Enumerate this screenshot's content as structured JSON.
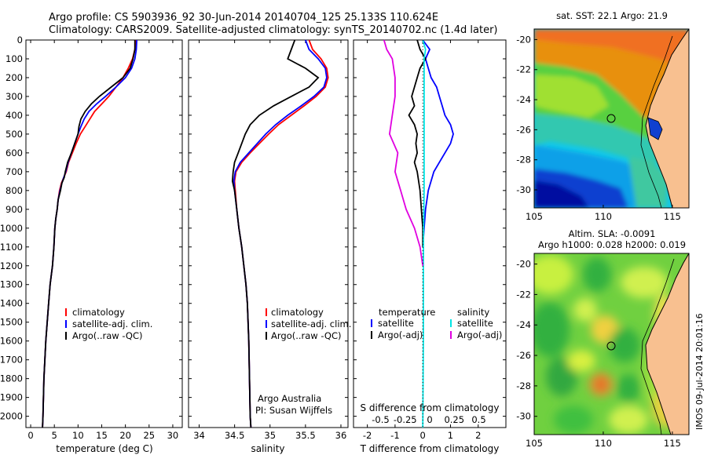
{
  "header": {
    "line1": "Argo profile: CS 5903936_92 30-Jun-2014 20140704_125 25.133S 110.624E",
    "line2": "Climatology: CARS2009. Satellite-adjusted climatology: synTS_20140702.nc (1.4d later)"
  },
  "credits": {
    "line1": "Argo Australia",
    "line2": "PI: Susan Wijffels"
  },
  "stamp": "IMOS 09-Jul-2014 20:01:16",
  "colors": {
    "climatology": "#ff0000",
    "satellite": "#0000ff",
    "argo": "#000000",
    "sal_sat": "#00e5e5",
    "sal_argo": "#e000e0"
  },
  "chart_data": [
    {
      "type": "line",
      "name": "temperature",
      "xlabel": "temperature (deg C)",
      "xticks": [
        0,
        5,
        10,
        15,
        20,
        25,
        30
      ],
      "xlim": [
        -1,
        32
      ],
      "yticks": [
        0,
        100,
        200,
        300,
        400,
        500,
        600,
        700,
        800,
        900,
        1000,
        1100,
        1200,
        1300,
        1400,
        1500,
        1600,
        1700,
        1800,
        1900,
        2000
      ],
      "ylim": [
        2060,
        0
      ],
      "legend": {
        "items": [
          "climatology",
          "satellite-adj. clim.",
          "Argo(..raw -QC)"
        ]
      },
      "series": [
        {
          "name": "climatology",
          "color": "#ff0000",
          "x": [
            22.2,
            22.0,
            21.5,
            20.6,
            19.5,
            18.0,
            16.5,
            15.0,
            13.5,
            12.5,
            11.5,
            10.5,
            9.6,
            8.8,
            8.0,
            7.5,
            7.0,
            6.5,
            6.1,
            5.8,
            5.6,
            5.3,
            5.1,
            4.9,
            4.6,
            4.1,
            3.8,
            3.5,
            3.2,
            3.0,
            2.8,
            2.7,
            2.6,
            2.5
          ],
          "y": [
            0,
            50,
            100,
            150,
            200,
            250,
            300,
            340,
            380,
            420,
            460,
            500,
            550,
            600,
            650,
            700,
            730,
            760,
            800,
            850,
            900,
            950,
            1000,
            1100,
            1200,
            1300,
            1400,
            1500,
            1600,
            1700,
            1800,
            1900,
            2000,
            2060
          ]
        },
        {
          "name": "satellite-adj. clim.",
          "color": "#0000ff",
          "x": [
            22.4,
            22.3,
            22.0,
            21.3,
            20.0,
            18.0,
            15.8,
            13.9,
            12.3,
            11.3,
            10.6,
            10.0,
            9.3,
            8.6,
            7.9,
            7.4,
            7.0,
            6.6,
            6.2,
            5.8,
            5.6,
            5.3,
            5.1,
            4.9,
            4.6,
            4.1,
            3.8,
            3.5,
            3.2,
            3.0,
            2.8,
            2.7,
            2.6,
            2.5
          ],
          "y": [
            0,
            50,
            100,
            150,
            200,
            250,
            300,
            340,
            380,
            420,
            460,
            500,
            550,
            600,
            650,
            700,
            730,
            760,
            800,
            850,
            900,
            950,
            1000,
            1100,
            1200,
            1300,
            1400,
            1500,
            1600,
            1700,
            1800,
            1900,
            2000,
            2060
          ]
        },
        {
          "name": "Argo(..raw -QC)",
          "color": "#000000",
          "x": [
            22.0,
            22.0,
            21.6,
            21.0,
            19.5,
            17.0,
            14.5,
            12.8,
            11.5,
            10.6,
            10.2,
            10.0,
            9.3,
            8.6,
            7.8,
            7.3,
            7.1,
            6.6,
            6.3,
            5.8,
            5.6,
            5.3,
            5.1,
            4.9,
            4.6,
            4.1,
            3.8,
            3.5,
            3.2,
            3.0,
            2.8,
            2.7,
            2.6,
            2.5
          ],
          "y": [
            0,
            50,
            100,
            150,
            200,
            250,
            300,
            340,
            380,
            420,
            460,
            500,
            550,
            600,
            650,
            700,
            730,
            760,
            800,
            850,
            900,
            950,
            1000,
            1100,
            1200,
            1300,
            1400,
            1500,
            1600,
            1700,
            1800,
            1900,
            2000,
            2060
          ]
        }
      ]
    },
    {
      "type": "line",
      "name": "salinity",
      "xlabel": "salinity",
      "xticks": [
        34,
        34.5,
        35,
        35.5,
        36
      ],
      "xlim": [
        33.85,
        36.1
      ],
      "yticks": [
        0,
        100,
        200,
        300,
        400,
        500,
        600,
        700,
        800,
        900,
        1000,
        1100,
        1200,
        1300,
        1400,
        1500,
        1600,
        1700,
        1800,
        1900,
        2000
      ],
      "ylim": [
        2060,
        0
      ],
      "legend": {
        "items": [
          "climatology",
          "satellite-adj. clim.",
          "Argo(..raw -QC)"
        ]
      },
      "series": [
        {
          "name": "climatology",
          "color": "#ff0000",
          "x": [
            35.55,
            35.6,
            35.72,
            35.8,
            35.82,
            35.78,
            35.65,
            35.48,
            35.3,
            35.12,
            34.98,
            34.85,
            34.72,
            34.6,
            34.52,
            34.5,
            34.51,
            34.53,
            34.56,
            34.6,
            34.63,
            34.66,
            34.68,
            34.7,
            34.71,
            34.72,
            34.73
          ],
          "y": [
            0,
            50,
            100,
            150,
            200,
            250,
            300,
            350,
            400,
            450,
            500,
            550,
            600,
            650,
            700,
            750,
            800,
            900,
            1000,
            1100,
            1200,
            1300,
            1400,
            1600,
            1800,
            2000,
            2060
          ]
        },
        {
          "name": "satellite-adj. clim.",
          "color": "#0000ff",
          "x": [
            35.5,
            35.55,
            35.68,
            35.78,
            35.8,
            35.76,
            35.62,
            35.44,
            35.25,
            35.08,
            34.94,
            34.82,
            34.7,
            34.58,
            34.51,
            34.49,
            34.5,
            34.53,
            34.56,
            34.6,
            34.63,
            34.66,
            34.68,
            34.7,
            34.71,
            34.72,
            34.73
          ],
          "y": [
            0,
            50,
            100,
            150,
            200,
            250,
            300,
            350,
            400,
            450,
            500,
            550,
            600,
            650,
            700,
            750,
            800,
            900,
            1000,
            1100,
            1200,
            1300,
            1400,
            1600,
            1800,
            2000,
            2060
          ]
        },
        {
          "name": "Argo(..raw -QC)",
          "color": "#000000",
          "x": [
            35.35,
            35.3,
            35.25,
            35.5,
            35.68,
            35.55,
            35.3,
            35.05,
            34.85,
            34.72,
            34.65,
            34.6,
            34.55,
            34.5,
            34.48,
            34.47,
            34.5,
            34.53,
            34.56,
            34.6,
            34.63,
            34.66,
            34.68,
            34.7,
            34.71,
            34.72,
            34.73
          ],
          "y": [
            0,
            50,
            100,
            150,
            200,
            250,
            300,
            350,
            400,
            450,
            500,
            550,
            600,
            650,
            700,
            750,
            800,
            900,
            1000,
            1100,
            1200,
            1300,
            1400,
            1600,
            1800,
            2000,
            2060
          ]
        }
      ]
    },
    {
      "type": "line",
      "name": "difference",
      "xlabel": "T difference from climatology",
      "x2label": "S difference from climatology",
      "xticks": [
        -2,
        -1,
        0,
        1,
        2
      ],
      "x2ticks": [
        -0.5,
        -0.25,
        0,
        0.25,
        0.5
      ],
      "x2tick_labels": [
        "-0.5",
        "-0.25",
        "0",
        "0.25",
        "0.5"
      ],
      "xlim": [
        -2.5,
        3.0
      ],
      "ylim": [
        2060,
        0
      ],
      "legend": {
        "temperature_title": "temperature",
        "salinity_title": "salinity",
        "items": [
          "satellite",
          "Argo(-adj)",
          "satellite",
          "Argo(-adj)"
        ]
      },
      "series": [
        {
          "name": "satellite",
          "color": "#0000ff",
          "x": [
            0.0,
            0.25,
            0.1,
            0.2,
            0.3,
            0.5,
            0.6,
            0.7,
            0.8,
            1.0,
            1.1,
            1.0,
            0.8,
            0.6,
            0.4,
            0.2,
            0.1,
            0.05,
            0.0
          ],
          "y": [
            0,
            50,
            100,
            150,
            200,
            250,
            300,
            350,
            400,
            450,
            500,
            550,
            600,
            650,
            700,
            800,
            900,
            1000,
            1100
          ]
        },
        {
          "name": "Argo(-adj)",
          "color": "#000000",
          "x": [
            -0.2,
            -0.1,
            0.1,
            -0.1,
            -0.2,
            -0.3,
            -0.4,
            -0.3,
            -0.5,
            -0.3,
            -0.2,
            -0.25,
            -0.2,
            -0.3,
            -0.2,
            -0.1,
            -0.05,
            0.0,
            0.0
          ],
          "y": [
            0,
            50,
            100,
            150,
            200,
            250,
            300,
            350,
            400,
            450,
            500,
            550,
            600,
            650,
            700,
            800,
            900,
            1000,
            1100
          ]
        },
        {
          "name": "satellite",
          "color": "#00e5e5",
          "x": [
            0.0,
            0.1,
            0.05,
            0.05,
            0.05,
            0.05,
            0.05,
            0.05,
            0.05,
            0.05,
            0.03,
            0.02,
            0.02,
            0.0
          ],
          "y": [
            0,
            50,
            100,
            200,
            300,
            400,
            500,
            600,
            700,
            800,
            1000,
            1200,
            1600,
            2060
          ]
        },
        {
          "name": "Argo(-adj)",
          "color": "#e000e0",
          "x": [
            -1.4,
            -1.3,
            -1.1,
            -1.0,
            -1.0,
            -1.1,
            -1.2,
            -0.9,
            -1.0,
            -0.8,
            -0.6,
            -0.3,
            -0.1,
            0.0
          ],
          "y": [
            0,
            50,
            100,
            200,
            300,
            400,
            500,
            600,
            700,
            800,
            900,
            1000,
            1100,
            1200
          ]
        }
      ]
    },
    {
      "type": "heatmap",
      "name": "sst_map",
      "title": "sat. SST: 22.1  Argo: 21.9",
      "xticks": [
        105,
        110,
        115
      ],
      "yticks": [
        -20,
        -22,
        -24,
        -26,
        -28,
        -30
      ],
      "ytick_labels": [
        "-20",
        "-22",
        "-24",
        "-26",
        "-28",
        "-30"
      ],
      "xlim": [
        105,
        116.2
      ],
      "ylim": [
        -31.2,
        -19.3
      ],
      "marker": {
        "lon": 110.624,
        "lat": -25.133
      }
    },
    {
      "type": "heatmap",
      "name": "sla_map",
      "title": "Altim. SLA: -0.0091",
      "subtitle": "Argo h1000: 0.028  h2000: 0.019",
      "xticks": [
        105,
        110,
        115
      ],
      "yticks": [
        -20,
        -22,
        -24,
        -26,
        -28,
        -30
      ],
      "ytick_labels": [
        "-20",
        "-22",
        "-24",
        "-26",
        "-28",
        "-30"
      ],
      "xlim": [
        105,
        116.2
      ],
      "ylim": [
        -31.2,
        -19.3
      ],
      "marker": {
        "lon": 110.624,
        "lat": -25.133
      }
    }
  ]
}
